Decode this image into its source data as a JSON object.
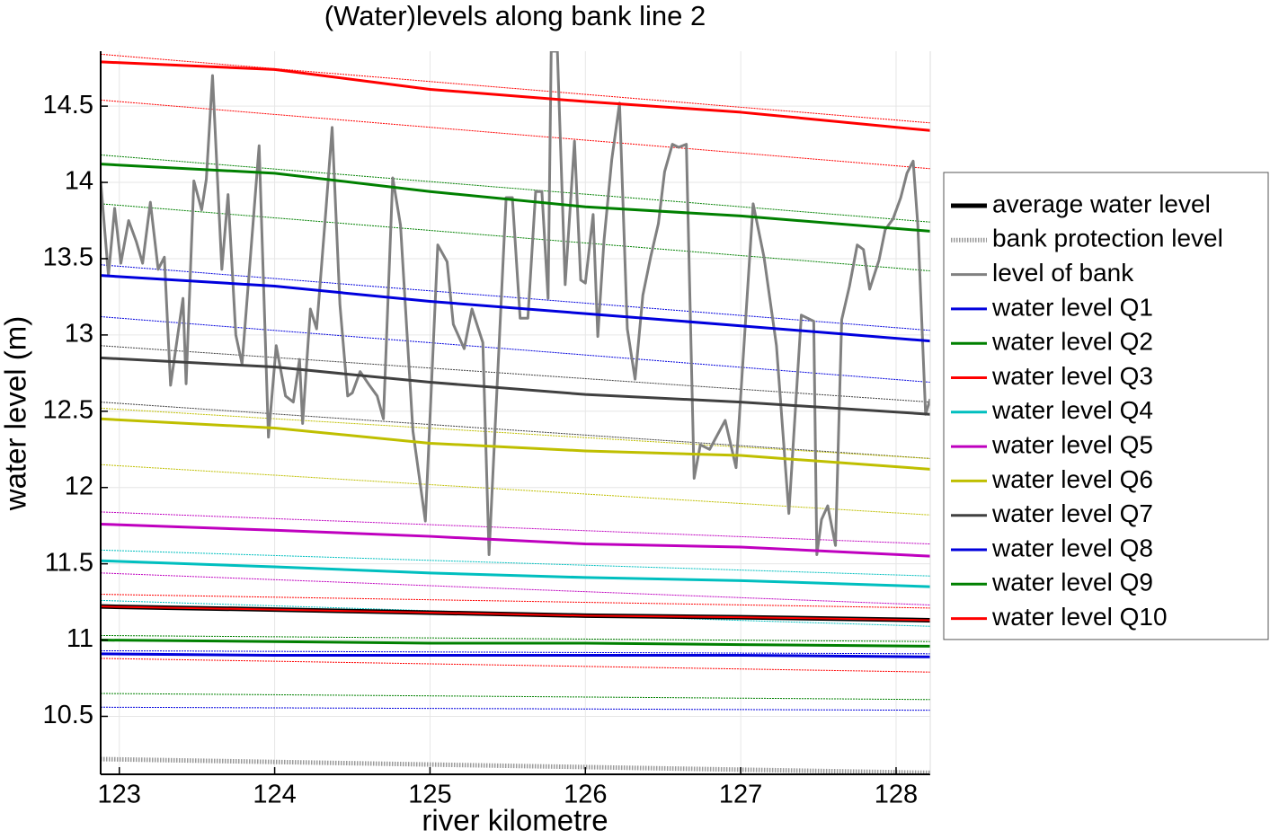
{
  "chart_data": {
    "type": "line",
    "title": "(Water)levels along bank line 2",
    "xlabel": "river kilometre",
    "ylabel": "water level (m)",
    "xlim": [
      122.88,
      128.22
    ],
    "ylim": [
      10.12,
      14.86
    ],
    "xticks": [
      123,
      124,
      125,
      126,
      127,
      128
    ],
    "yticks": [
      10.5,
      11,
      11.5,
      12,
      12.5,
      13,
      13.5,
      14,
      14.5
    ],
    "grid": true,
    "legend": "outside-right",
    "series": [
      {
        "name": "average water level",
        "color": "#000000",
        "style": "heavy",
        "x": [
          122.88,
          124,
          125,
          126,
          127,
          128.22
        ],
        "values": [
          11.22,
          11.2,
          11.18,
          11.16,
          11.15,
          11.13
        ]
      },
      {
        "name": "bank protection level",
        "color": "#9a9a9a",
        "style": "dotted",
        "x": [
          122.88,
          128.22
        ],
        "values": [
          10.22,
          10.13
        ]
      },
      {
        "name": "level of bank",
        "color": "#808080",
        "style": "solid",
        "x": [
          122.88,
          122.93,
          122.97,
          123.01,
          123.06,
          123.11,
          123.15,
          123.2,
          123.25,
          123.29,
          123.33,
          123.41,
          123.43,
          123.48,
          123.53,
          123.56,
          123.6,
          123.66,
          123.7,
          123.75,
          123.79,
          123.9,
          123.96,
          124.01,
          124.07,
          124.12,
          124.16,
          124.18,
          124.23,
          124.27,
          124.33,
          124.37,
          124.42,
          124.47,
          124.5,
          124.55,
          124.61,
          124.66,
          124.7,
          124.76,
          124.81,
          124.89,
          124.97,
          125.05,
          125.11,
          125.15,
          125.22,
          125.27,
          125.34,
          125.38,
          125.49,
          125.53,
          125.58,
          125.63,
          125.68,
          125.72,
          125.76,
          125.78,
          125.82,
          125.87,
          125.93,
          125.97,
          126.0,
          126.05,
          126.08,
          126.12,
          126.17,
          126.22,
          126.27,
          126.32,
          126.37,
          126.42,
          126.47,
          126.51,
          126.56,
          126.6,
          126.65,
          126.7,
          126.74,
          126.8,
          126.9,
          126.97,
          127.08,
          127.15,
          127.23,
          127.31,
          127.39,
          127.47,
          127.49,
          127.52,
          127.56,
          127.61,
          127.65,
          127.7,
          127.75,
          127.79,
          127.83,
          127.89,
          127.93,
          127.98,
          128.03,
          128.07,
          128.11,
          128.14,
          128.19,
          128.22
        ],
        "values": [
          14.01,
          13.39,
          13.83,
          13.47,
          13.75,
          13.61,
          13.47,
          13.87,
          13.43,
          13.51,
          12.67,
          13.24,
          12.68,
          14.01,
          13.82,
          14.02,
          14.7,
          13.43,
          13.92,
          13.0,
          12.81,
          14.24,
          12.33,
          12.93,
          12.6,
          12.56,
          12.84,
          12.42,
          13.17,
          13.04,
          13.82,
          14.36,
          13.2,
          12.6,
          12.62,
          12.76,
          12.67,
          12.6,
          12.45,
          14.03,
          13.72,
          12.37,
          11.78,
          13.59,
          13.48,
          13.07,
          12.91,
          13.17,
          12.95,
          11.56,
          13.9,
          13.9,
          13.11,
          13.11,
          13.94,
          13.94,
          13.24,
          14.86,
          14.86,
          13.33,
          14.27,
          13.36,
          13.34,
          13.79,
          12.99,
          13.62,
          14.15,
          14.52,
          13.04,
          12.71,
          13.26,
          13.51,
          13.73,
          14.07,
          14.25,
          14.23,
          14.25,
          12.06,
          12.28,
          12.25,
          12.44,
          12.13,
          13.86,
          13.51,
          12.93,
          11.83,
          13.13,
          13.09,
          11.56,
          11.79,
          11.88,
          11.62,
          13.1,
          13.32,
          13.59,
          13.56,
          13.3,
          13.49,
          13.69,
          13.76,
          13.9,
          14.06,
          14.14,
          13.72,
          12.48,
          12.58
        ]
      },
      {
        "name": "water level Q1",
        "color": "#0000dd",
        "style": "solid",
        "x": [
          122.88,
          124,
          125,
          126,
          127,
          128.22
        ],
        "values": [
          13.39,
          13.32,
          13.22,
          13.14,
          13.06,
          12.96
        ]
      },
      {
        "name": "water level Q2",
        "color": "#008000",
        "style": "solid",
        "x": [
          122.88,
          124,
          125,
          126,
          127,
          128.22
        ],
        "values": [
          14.12,
          14.06,
          13.94,
          13.84,
          13.78,
          13.68
        ]
      },
      {
        "name": "water level Q3",
        "color": "#ff0000",
        "style": "solid",
        "x": [
          122.88,
          124,
          125,
          126,
          127,
          128.22
        ],
        "values": [
          14.79,
          14.74,
          14.61,
          14.53,
          14.46,
          14.34
        ]
      },
      {
        "name": "water level Q4",
        "color": "#00bfbf",
        "style": "solid",
        "x": [
          122.88,
          124,
          125,
          126,
          127,
          128.22
        ],
        "values": [
          11.52,
          11.48,
          11.44,
          11.41,
          11.39,
          11.35
        ]
      },
      {
        "name": "water level Q5",
        "color": "#bf00bf",
        "style": "solid",
        "x": [
          122.88,
          124,
          125,
          126,
          127,
          128.22
        ],
        "values": [
          11.76,
          11.72,
          11.68,
          11.63,
          11.61,
          11.55
        ]
      },
      {
        "name": "water level Q6",
        "color": "#bfbf00",
        "style": "solid",
        "x": [
          122.88,
          124,
          125,
          126,
          127,
          128.22
        ],
        "values": [
          12.45,
          12.39,
          12.29,
          12.24,
          12.21,
          12.12
        ]
      },
      {
        "name": "water level Q7",
        "color": "#404040",
        "style": "solid",
        "x": [
          122.88,
          124,
          125,
          126,
          127,
          128.22
        ],
        "values": [
          12.85,
          12.79,
          12.69,
          12.61,
          12.56,
          12.48
        ]
      },
      {
        "name": "water level Q8",
        "color": "#0000dd",
        "style": "solid",
        "x": [
          122.88,
          124,
          125,
          126,
          127,
          128.22
        ],
        "values": [
          10.91,
          10.9,
          10.9,
          10.9,
          10.9,
          10.89
        ]
      },
      {
        "name": "water level Q9",
        "color": "#008000",
        "style": "solid",
        "x": [
          122.88,
          124,
          125,
          126,
          127,
          128.22
        ],
        "values": [
          11.0,
          10.99,
          10.98,
          10.98,
          10.97,
          10.96
        ]
      },
      {
        "name": "water level Q10",
        "color": "#ff0000",
        "style": "core",
        "x": [
          122.88,
          124,
          125,
          126,
          127,
          128.22
        ],
        "values": [
          11.22,
          11.2,
          11.18,
          11.16,
          11.15,
          11.13
        ]
      },
      {
        "color": "#ff0000",
        "style": "thin",
        "x": [
          122.88,
          128.22
        ],
        "values": [
          14.84,
          14.39
        ]
      },
      {
        "color": "#ff0000",
        "style": "thin",
        "x": [
          122.88,
          128.22
        ],
        "values": [
          14.54,
          14.09
        ]
      },
      {
        "color": "#008000",
        "style": "thin",
        "x": [
          122.88,
          128.22
        ],
        "values": [
          14.18,
          13.74
        ]
      },
      {
        "color": "#008000",
        "style": "thin",
        "x": [
          122.88,
          128.22
        ],
        "values": [
          13.86,
          13.42
        ]
      },
      {
        "color": "#0000dd",
        "style": "thin",
        "x": [
          122.88,
          128.22
        ],
        "values": [
          13.46,
          13.03
        ]
      },
      {
        "color": "#0000dd",
        "style": "thin",
        "x": [
          122.88,
          128.22
        ],
        "values": [
          13.12,
          12.69
        ]
      },
      {
        "color": "#404040",
        "style": "thin",
        "x": [
          122.88,
          128.22
        ],
        "values": [
          12.93,
          12.56
        ]
      },
      {
        "color": "#404040",
        "style": "thin",
        "x": [
          122.88,
          128.22
        ],
        "values": [
          12.56,
          12.19
        ]
      },
      {
        "color": "#bfbf00",
        "style": "thin",
        "x": [
          122.88,
          128.22
        ],
        "values": [
          12.52,
          12.19
        ]
      },
      {
        "color": "#bfbf00",
        "style": "thin",
        "x": [
          122.88,
          128.22
        ],
        "values": [
          12.15,
          11.82
        ]
      },
      {
        "color": "#bf00bf",
        "style": "thin",
        "x": [
          122.88,
          128.22
        ],
        "values": [
          11.84,
          11.63
        ]
      },
      {
        "color": "#bf00bf",
        "style": "thin",
        "x": [
          122.88,
          128.22
        ],
        "values": [
          11.44,
          11.23
        ]
      },
      {
        "color": "#00bfbf",
        "style": "thin",
        "x": [
          122.88,
          128.22
        ],
        "values": [
          11.59,
          11.42
        ]
      },
      {
        "color": "#00bfbf",
        "style": "thin",
        "x": [
          122.88,
          128.22
        ],
        "values": [
          11.26,
          11.09
        ]
      },
      {
        "color": "#ff0000",
        "style": "thin",
        "x": [
          122.88,
          128.22
        ],
        "values": [
          11.3,
          11.21
        ]
      },
      {
        "color": "#ff0000",
        "style": "thin",
        "x": [
          122.88,
          128.22
        ],
        "values": [
          10.88,
          10.79
        ]
      },
      {
        "color": "#008000",
        "style": "thin",
        "x": [
          122.88,
          128.22
        ],
        "values": [
          11.03,
          10.99
        ]
      },
      {
        "color": "#008000",
        "style": "thin",
        "x": [
          122.88,
          128.22
        ],
        "values": [
          10.65,
          10.61
        ]
      },
      {
        "color": "#0000dd",
        "style": "thin",
        "x": [
          122.88,
          128.22
        ],
        "values": [
          10.93,
          10.91
        ]
      },
      {
        "color": "#0000dd",
        "style": "thin",
        "x": [
          122.88,
          128.22
        ],
        "values": [
          10.56,
          10.54
        ]
      }
    ]
  }
}
